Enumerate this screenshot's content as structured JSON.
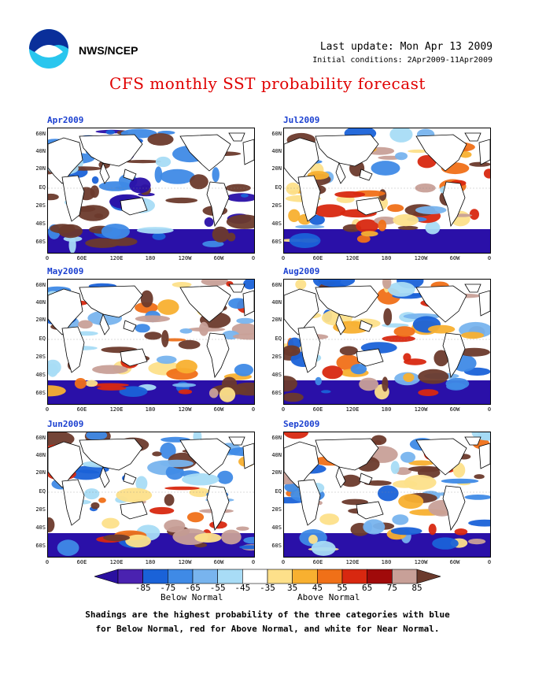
{
  "header": {
    "org": "NWS/NCEP",
    "last_update": "Last update: Mon Apr 13 2009",
    "initial_conditions": "Initial conditions: 2Apr2009-11Apr2009",
    "title": "CFS monthly SST probability forecast"
  },
  "logo": {
    "icon": "noaa-logo-icon"
  },
  "axes": {
    "y_ticks": [
      "60N",
      "40N",
      "20N",
      "EQ",
      "20S",
      "40S",
      "60S"
    ],
    "x_ticks": [
      "0",
      "60E",
      "120E",
      "180",
      "120W",
      "60W",
      "0"
    ]
  },
  "panels": [
    {
      "month": "Apr2009"
    },
    {
      "month": "Jul2009"
    },
    {
      "month": "May2009"
    },
    {
      "month": "Aug2009"
    },
    {
      "month": "Jun2009"
    },
    {
      "month": "Sep2009"
    }
  ],
  "legend": {
    "labels": [
      "-85",
      "-75",
      "-65",
      "-55",
      "-45",
      "-35",
      "35",
      "45",
      "55",
      "65",
      "75",
      "85"
    ],
    "colors": [
      "#4a22b0",
      "#1a62d8",
      "#3f8ae6",
      "#78b4ee",
      "#a8dcf6",
      "#ffffff",
      "#fde08a",
      "#f8b030",
      "#f07018",
      "#d82810",
      "#a00a0a",
      "#c8a098"
    ],
    "left_arrow_color": "#2a10a0",
    "right_arrow_color": "#6b3a2c",
    "below_label": "Below Normal",
    "above_label": "Above Normal"
  },
  "caption": {
    "line1": "Shadings are the highest probability of the three categories with blue",
    "line2": "for Below Normal, red for Above Normal, and white for Near Normal."
  }
}
